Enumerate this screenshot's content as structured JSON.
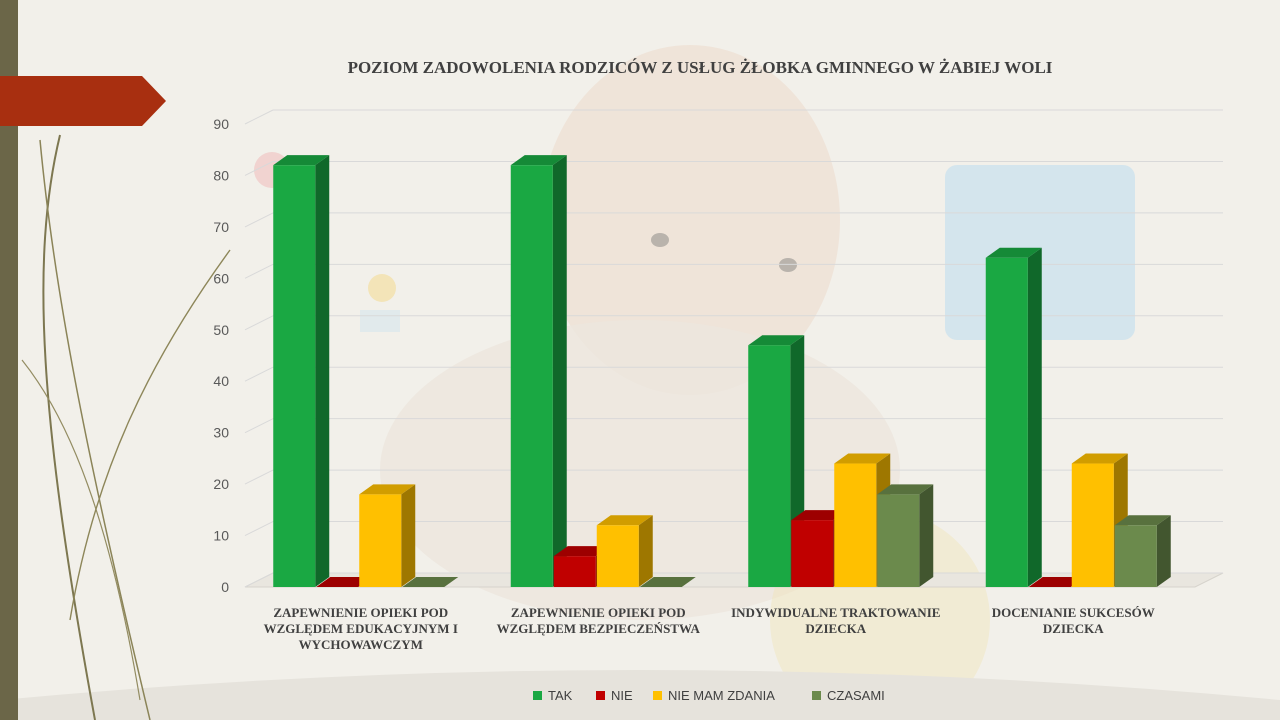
{
  "chart_data": {
    "type": "bar",
    "title": "POZIOM ZADOWOLENIA RODZICÓW Z USŁUG ŻŁOBKA GMINNEGO W ŻABIEJ WOLI",
    "categories": [
      "ZAPEWNIENIE OPIEKI POD WZGLĘDEM EDUKACYJNYM I WYCHOWAWCZYM",
      "ZAPEWNIENIE OPIEKI POD WZGLĘDEM BEZPIECZEŃSTWA",
      "INDYWIDUALNE TRAKTOWANIE DZIECKA",
      "DOCENIANIE SUKCESÓW DZIECKA"
    ],
    "series": [
      {
        "name": "TAK",
        "color": "#1aa843",
        "values": [
          82,
          82,
          47,
          64
        ]
      },
      {
        "name": "NIE",
        "color": "#c00000",
        "values": [
          0,
          6,
          13,
          0
        ]
      },
      {
        "name": "NIE MAM ZDANIA",
        "color": "#ffc000",
        "values": [
          18,
          12,
          24,
          24
        ]
      },
      {
        "name": "CZASAMI",
        "color": "#6b8a4c",
        "values": [
          0,
          0,
          18,
          12
        ]
      }
    ],
    "ylim": [
      0,
      90
    ],
    "yticks": [
      "0",
      "10",
      "20",
      "30",
      "40",
      "50",
      "60",
      "70",
      "80",
      "90"
    ],
    "grid": true,
    "legend_position": "bottom",
    "style": "3d-column"
  }
}
